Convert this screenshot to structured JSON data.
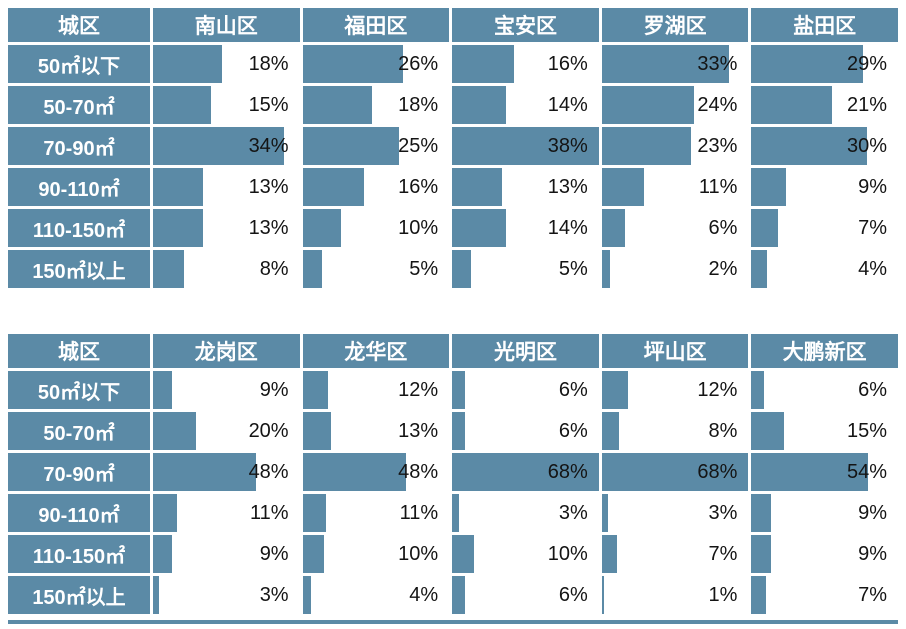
{
  "colors": {
    "accent": "#5b8aa6",
    "value_text": "#141414",
    "background": "#ffffff"
  },
  "value_suffix": "%",
  "chart_data": [
    {
      "type": "table",
      "style": "data-bars",
      "title": "",
      "corner_label": "城区",
      "columns": [
        "城区",
        "南山区",
        "福田区",
        "宝安区",
        "罗湖区",
        "盐田区"
      ],
      "row_labels": [
        "50㎡以下",
        "50-70㎡",
        "70-90㎡",
        "90-110㎡",
        "110-150㎡",
        "150㎡以上"
      ],
      "rows": [
        {
          "label": "50㎡以下",
          "values": [
            18,
            26,
            16,
            33,
            29
          ]
        },
        {
          "label": "50-70㎡",
          "values": [
            15,
            18,
            14,
            24,
            21
          ]
        },
        {
          "label": "70-90㎡",
          "values": [
            34,
            25,
            38,
            23,
            30
          ]
        },
        {
          "label": "90-110㎡",
          "values": [
            13,
            16,
            13,
            11,
            9
          ]
        },
        {
          "label": "110-150㎡",
          "values": [
            13,
            10,
            14,
            6,
            7
          ]
        },
        {
          "label": "150㎡以上",
          "values": [
            8,
            5,
            5,
            2,
            4
          ]
        }
      ],
      "bar_scale_max": 38,
      "bar_orientation": "horizontal",
      "value_format": "percent"
    },
    {
      "type": "table",
      "style": "data-bars",
      "title": "",
      "corner_label": "城区",
      "columns": [
        "城区",
        "龙岗区",
        "龙华区",
        "光明区",
        "坪山区",
        "大鹏新区"
      ],
      "row_labels": [
        "50㎡以下",
        "50-70㎡",
        "70-90㎡",
        "90-110㎡",
        "110-150㎡",
        "150㎡以上"
      ],
      "rows": [
        {
          "label": "50㎡以下",
          "values": [
            9,
            12,
            6,
            12,
            6
          ]
        },
        {
          "label": "50-70㎡",
          "values": [
            20,
            13,
            6,
            8,
            15
          ]
        },
        {
          "label": "70-90㎡",
          "values": [
            48,
            48,
            68,
            68,
            54
          ]
        },
        {
          "label": "90-110㎡",
          "values": [
            11,
            11,
            3,
            3,
            9
          ]
        },
        {
          "label": "110-150㎡",
          "values": [
            9,
            10,
            10,
            7,
            9
          ]
        },
        {
          "label": "150㎡以上",
          "values": [
            3,
            4,
            6,
            1,
            7
          ]
        }
      ],
      "bar_scale_max": 68,
      "bar_orientation": "horizontal",
      "value_format": "percent"
    }
  ]
}
